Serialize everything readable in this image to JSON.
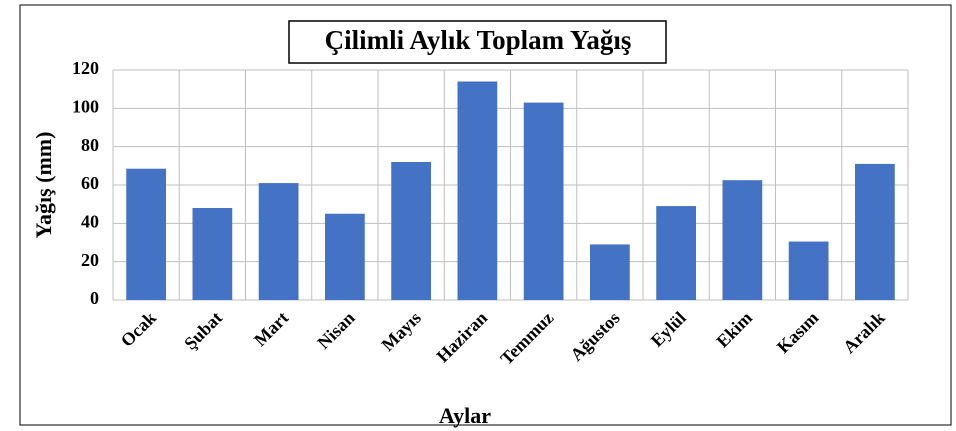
{
  "chart_data": {
    "type": "bar",
    "title": "Çilimli Aylık Toplam Yağış",
    "x_label": "Aylar",
    "y_label": "Yağış (mm)",
    "categories": [
      "Ocak",
      "Şubat",
      "Mart",
      "Nisan",
      "Mayıs",
      "Haziran",
      "Temmuz",
      "Ağustos",
      "Eylül",
      "Ekim",
      "Kasım",
      "Aralık"
    ],
    "values": [
      68.5,
      48,
      61,
      45,
      72,
      114,
      103,
      29,
      49,
      62.5,
      30.5,
      71
    ],
    "color": "#4472c4",
    "ylim": [
      0,
      120
    ],
    "yticks": [
      0,
      20,
      40,
      60,
      80,
      100,
      120
    ],
    "grid": true
  }
}
